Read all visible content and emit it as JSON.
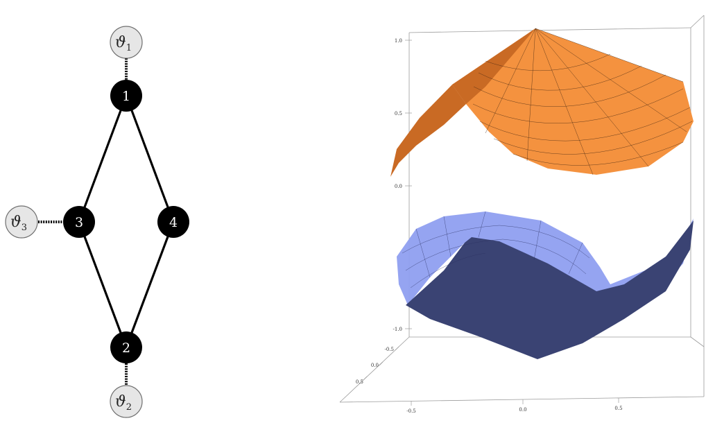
{
  "graph": {
    "nodes": [
      {
        "id": "1",
        "label": "1",
        "kind": "vertex"
      },
      {
        "id": "2",
        "label": "2",
        "kind": "vertex"
      },
      {
        "id": "3",
        "label": "3",
        "kind": "vertex"
      },
      {
        "id": "4",
        "label": "4",
        "kind": "vertex"
      }
    ],
    "ports": [
      {
        "id": "theta1",
        "symbol": "ϑ",
        "subscript": "1",
        "attached_to": "1"
      },
      {
        "id": "theta2",
        "symbol": "ϑ",
        "subscript": "2",
        "attached_to": "2"
      },
      {
        "id": "theta3",
        "symbol": "ϑ",
        "subscript": "3",
        "attached_to": "3"
      }
    ],
    "edges": [
      {
        "from": "1",
        "to": "3",
        "style": "solid"
      },
      {
        "from": "1",
        "to": "4",
        "style": "solid"
      },
      {
        "from": "3",
        "to": "2",
        "style": "solid"
      },
      {
        "from": "4",
        "to": "2",
        "style": "solid"
      },
      {
        "from": "theta1",
        "to": "1",
        "style": "dotted"
      },
      {
        "from": "theta2",
        "to": "2",
        "style": "dotted"
      },
      {
        "from": "theta3",
        "to": "3",
        "style": "dotted"
      }
    ]
  },
  "plot3d": {
    "z_ticks": [
      "1.0",
      "0.5",
      "0.0",
      "-1.0"
    ],
    "depth_ticks": [
      "-0.5",
      "0.0",
      "0.5"
    ],
    "x_ticks": [
      "-0.5",
      "0.0",
      "0.5"
    ],
    "surfaces": [
      {
        "id": "upper",
        "color": "#f4923f",
        "shade_color": "#c96a24"
      },
      {
        "id": "lower",
        "color": "#8f9ff0",
        "shade_color": "#3a4373"
      }
    ]
  }
}
